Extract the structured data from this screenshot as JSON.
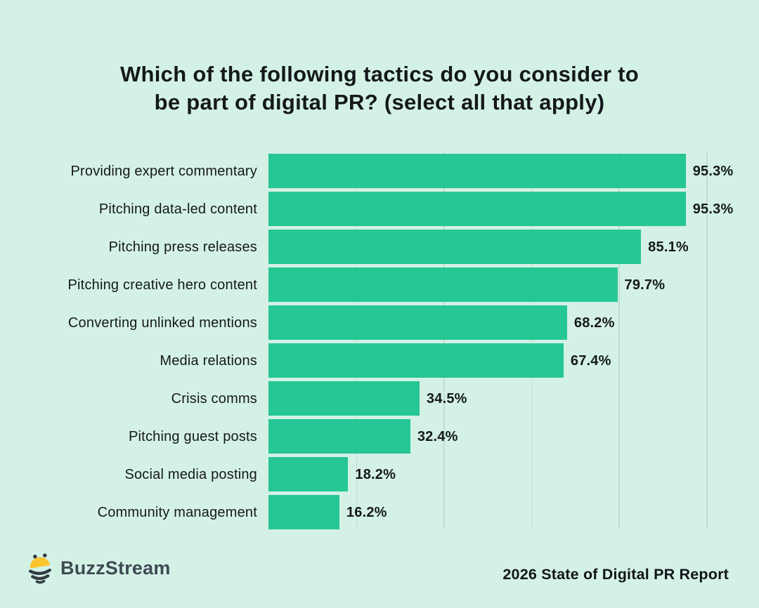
{
  "page": {
    "background_color": "#d4f1e6",
    "text_color": "#14181b"
  },
  "title": {
    "line1": "Which of the following tactics do you consider to",
    "line2": "be part of digital PR? (select all that apply)"
  },
  "chart_data": {
    "type": "bar",
    "orientation": "horizontal",
    "title": "Which of the following tactics do you consider to be part of digital PR? (select all that apply)",
    "categories": [
      "Providing expert commentary",
      "Pitching data-led content",
      "Pitching press releases",
      "Pitching creative hero content",
      "Converting unlinked mentions",
      "Media relations",
      "Crisis comms",
      "Pitching guest posts",
      "Social media posting",
      "Community management"
    ],
    "values": [
      95.3,
      95.3,
      85.1,
      79.7,
      68.2,
      67.4,
      34.5,
      32.4,
      18.2,
      16.2
    ],
    "value_labels": [
      "95.3%",
      "95.3%",
      "85.1%",
      "79.7%",
      "68.2%",
      "67.4%",
      "34.5%",
      "32.4%",
      "18.2%",
      "16.2%"
    ],
    "xlim": [
      0,
      100
    ],
    "gridline_values": [
      20,
      40,
      60,
      80,
      100
    ],
    "grid": "vertical-only",
    "legend": "none",
    "bar_color": "#26c695",
    "gridline_color": "#c2ddd2"
  },
  "footer": {
    "brand_name": "BuzzStream",
    "logo_icon": "bee-icon",
    "report_label": "2026 State of Digital PR Report",
    "brand_text_color": "#3e4a53",
    "bee_yellow": "#fcc52f",
    "bee_dark": "#303c42"
  }
}
